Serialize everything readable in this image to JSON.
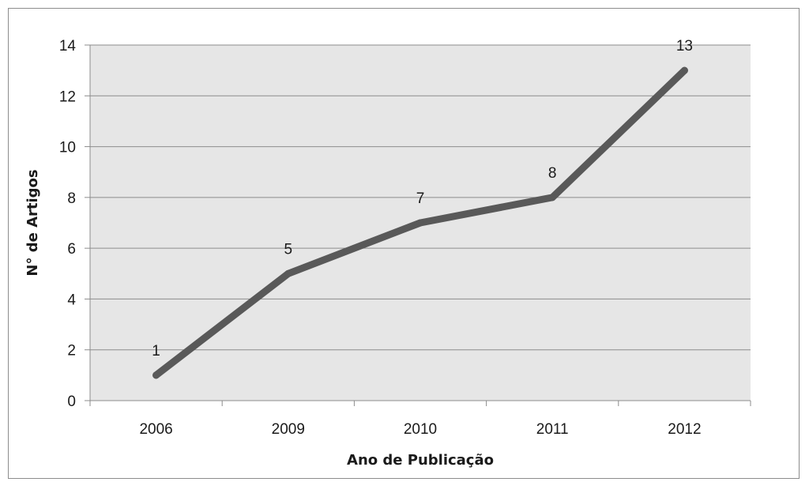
{
  "chart_data": {
    "type": "line",
    "title": "",
    "xlabel": "Ano de Publicação",
    "ylabel": "N° de Artigos",
    "categories": [
      "2006",
      "2009",
      "2010",
      "2011",
      "2012"
    ],
    "series": [
      {
        "values": [
          1,
          5,
          7,
          8,
          13
        ]
      }
    ],
    "data_labels": [
      "1",
      "5",
      "7",
      "8",
      "13"
    ],
    "ylim": [
      0,
      14
    ],
    "yticks": [
      "0",
      "2",
      "4",
      "6",
      "8",
      "10",
      "12",
      "14"
    ],
    "grid": true,
    "legend": "none",
    "colors": {
      "plot_background": "#e6e6e6",
      "line": "#595959",
      "gridline": "#8c8c8c"
    }
  }
}
